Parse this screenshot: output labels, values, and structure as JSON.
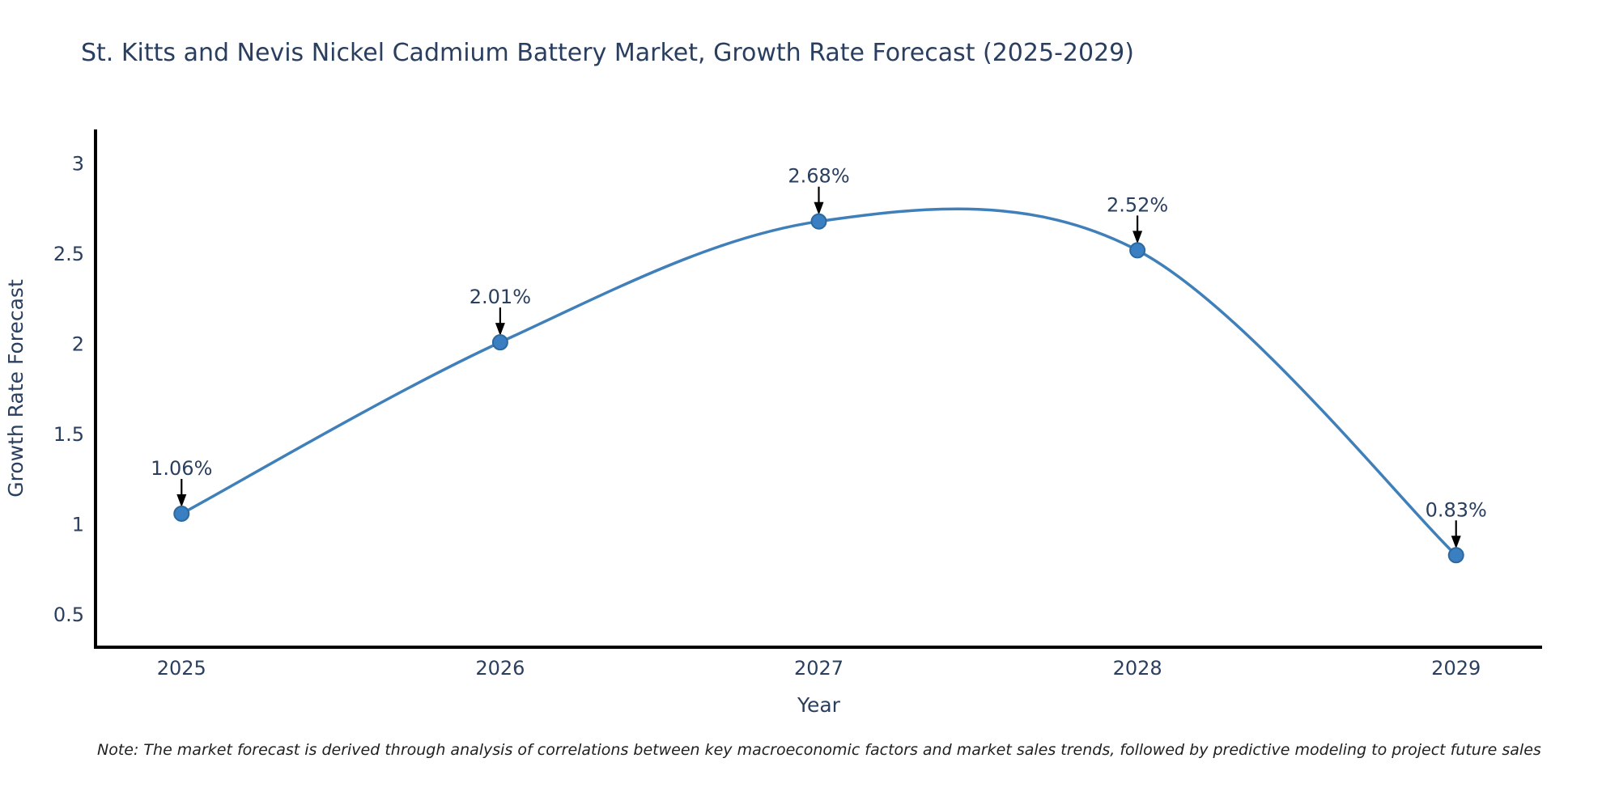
{
  "title": {
    "text": "St. Kitts and Nevis Nickel Cadmium Battery Market, Growth Rate Forecast (2025-2029)",
    "color": "#2a3f5f"
  },
  "note": {
    "text": "Note: The market forecast is derived through analysis of correlations between key macroeconomic factors and market sales trends, followed by predictive modeling to project future sales"
  },
  "chart_data": {
    "type": "line",
    "title": "St. Kitts and Nevis Nickel Cadmium Battery Market, Growth Rate Forecast (2025-2029)",
    "xlabel": "Year",
    "ylabel": "Growth Rate Forecast",
    "x": [
      2025,
      2026,
      2027,
      2028,
      2029
    ],
    "x_tick_labels": [
      "2025",
      "2026",
      "2027",
      "2028",
      "2029"
    ],
    "y_ticks": [
      0.5,
      1,
      1.5,
      2,
      2.5,
      3
    ],
    "y_tick_labels": [
      "0.5",
      "1",
      "1.5",
      "2",
      "2.5",
      "3"
    ],
    "xlim": [
      2024.73,
      2029.27
    ],
    "ylim": [
      0.32,
      3.19
    ],
    "grid": false,
    "legend": "none",
    "line_shape": "spline",
    "series": [
      {
        "name": "Growth Rate Forecast",
        "values": [
          1.06,
          2.01,
          2.68,
          2.52,
          0.83
        ],
        "point_labels": [
          "1.06%",
          "2.01%",
          "2.68%",
          "2.52%",
          "0.83%"
        ]
      }
    ],
    "colors": {
      "line": "#3f7fba",
      "marker_fill": "#3a7fc2",
      "marker_edge": "#2c699f",
      "axis_line": "#000000",
      "tick_text": "#2a3f5f",
      "axis_title_text": "#2a3f5f",
      "annotation_text": "#2a3f5f",
      "annotation_arrow": "#000000",
      "background": "#ffffff"
    }
  }
}
